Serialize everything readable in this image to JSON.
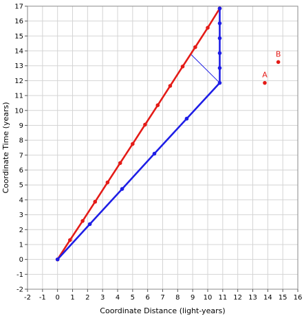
{
  "chart_data": {
    "type": "line",
    "xlabel": "Coordinate Distance (light-years)",
    "ylabel": "Coordinate Time (years)",
    "xlim": [
      -2,
      16
    ],
    "ylim": [
      -2,
      17
    ],
    "grid": true,
    "x_ticks": [
      "-2",
      "-1",
      "0",
      "1",
      "2",
      "3",
      "4",
      "5",
      "6",
      "7",
      "8",
      "9",
      "10",
      "11",
      "12",
      "13",
      "14",
      "15",
      "16"
    ],
    "y_ticks": [
      "-2",
      "-1",
      "0",
      "1",
      "2",
      "3",
      "4",
      "5",
      "6",
      "7",
      "8",
      "9",
      "10",
      "11",
      "12",
      "13",
      "14",
      "15",
      "16",
      "17"
    ],
    "series": [
      {
        "color": "#e41b17",
        "points": [
          [
            0,
            0
          ],
          [
            0.83,
            1.3
          ],
          [
            1.67,
            2.58
          ],
          [
            2.5,
            3.87
          ],
          [
            3.33,
            5.17
          ],
          [
            4.17,
            6.47
          ],
          [
            5.0,
            7.75
          ],
          [
            5.83,
            9.05
          ],
          [
            6.67,
            10.35
          ],
          [
            7.5,
            11.65
          ],
          [
            8.33,
            12.95
          ],
          [
            9.17,
            14.25
          ],
          [
            10.0,
            15.55
          ],
          [
            10.8,
            16.85
          ]
        ]
      },
      {
        "color": "#1e1ee6",
        "points": [
          [
            0,
            0
          ],
          [
            2.15,
            2.37
          ],
          [
            4.3,
            4.73
          ],
          [
            6.45,
            7.1
          ],
          [
            8.6,
            9.45
          ],
          [
            10.8,
            11.85
          ],
          [
            10.8,
            12.85
          ],
          [
            10.8,
            13.85
          ],
          [
            10.8,
            14.85
          ],
          [
            10.8,
            15.85
          ],
          [
            10.8,
            16.85
          ]
        ]
      }
    ],
    "annotation_line": {
      "color": "#1e1ee6",
      "from": [
        10.8,
        11.85
      ],
      "to": [
        8.9,
        13.75
      ]
    },
    "labeled_points": [
      {
        "label": "A",
        "x": 13.8,
        "y": 11.85,
        "color": "#e41b17"
      },
      {
        "label": "B",
        "x": 14.7,
        "y": 13.25,
        "color": "#e41b17"
      }
    ]
  }
}
